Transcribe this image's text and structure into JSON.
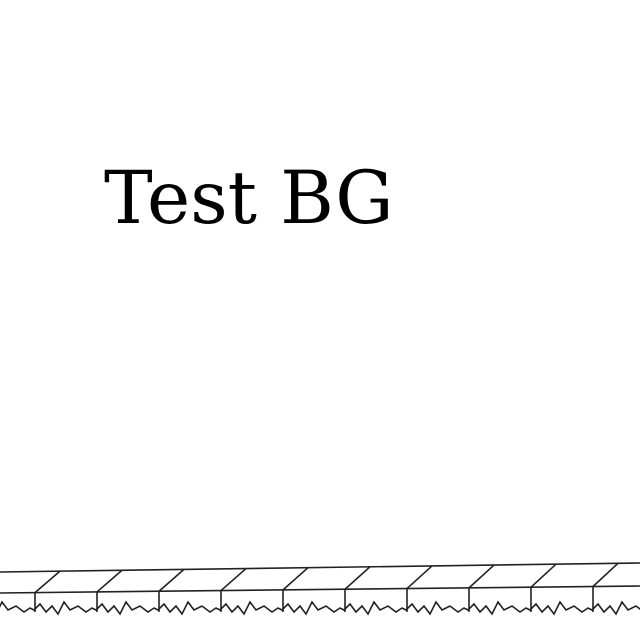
{
  "scene": {
    "title": "Test BG",
    "background_color": "#ffffff",
    "line_color": "#222222"
  }
}
